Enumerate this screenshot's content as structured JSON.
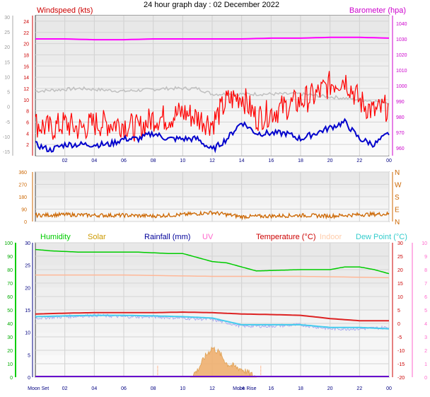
{
  "title": "24 hour graph day : 02 December 2022",
  "chart_data": [
    {
      "type": "line",
      "panel": "wind-baro",
      "left_label": "Windspeed (kts)",
      "right_label": "Barometer (hpa)",
      "x_ticks": [
        "02",
        "04",
        "06",
        "08",
        "10",
        "12",
        "14",
        "16",
        "18",
        "20",
        "22",
        "00"
      ],
      "y_left_ticks": [
        "24",
        "22",
        "20",
        "18",
        "16",
        "14",
        "12",
        "10",
        "8",
        "6",
        "4",
        "2"
      ],
      "y_far_left_ticks": [
        "30",
        "25",
        "20",
        "15",
        "10",
        "5",
        "0",
        "-5",
        "-10",
        "-15"
      ],
      "y_right_ticks": [
        "1040",
        "1030",
        "1020",
        "1010",
        "1000",
        "990",
        "980",
        "970",
        "960"
      ],
      "ylim_left": [
        0,
        25
      ],
      "ylim_right": [
        955,
        1045
      ],
      "series": [
        {
          "role": "barometer",
          "color": "#ff00ff",
          "x": [
            0,
            2,
            4,
            6,
            8,
            10,
            12,
            14,
            16,
            18,
            20,
            22,
            24
          ],
          "values": [
            1030,
            1030,
            1029.5,
            1029.5,
            1030,
            1030,
            1030,
            1030,
            1030.5,
            1030.5,
            1031,
            1031,
            1030.5
          ]
        },
        {
          "role": "gust",
          "color": "#ff0000",
          "x": [
            0,
            1,
            2,
            3,
            4,
            5,
            6,
            7,
            8,
            9,
            10,
            11,
            12,
            13,
            14,
            15,
            16,
            17,
            18,
            19,
            20,
            21,
            22,
            23,
            24
          ],
          "values": [
            5,
            4,
            5,
            4,
            5,
            5,
            5,
            4,
            6,
            6,
            7,
            6,
            5,
            9,
            10,
            6,
            7,
            8,
            9,
            10,
            12,
            13,
            9,
            7,
            8
          ]
        },
        {
          "role": "average",
          "color": "#0000cc",
          "x": [
            0,
            1,
            2,
            3,
            4,
            5,
            6,
            7,
            8,
            9,
            10,
            11,
            12,
            13,
            14,
            15,
            16,
            17,
            18,
            19,
            20,
            21,
            22,
            23,
            24
          ],
          "values": [
            2,
            1,
            2,
            2,
            2,
            2,
            3,
            3,
            4,
            3,
            3,
            3,
            1,
            3,
            6,
            4,
            4,
            4,
            3,
            4,
            5,
            6,
            3,
            2,
            4
          ]
        },
        {
          "role": "gray",
          "color": "#c0c0c0",
          "x": [
            0,
            3,
            6,
            9,
            11,
            12,
            14,
            16,
            18,
            20,
            22,
            24
          ],
          "values": [
            11.5,
            12,
            11.5,
            12,
            12,
            11,
            11,
            11,
            11,
            10.5,
            10,
            9.5
          ]
        }
      ]
    },
    {
      "type": "line",
      "panel": "direction",
      "y_left_ticks": [
        "360",
        "270",
        "180",
        "90",
        "0"
      ],
      "y_right_ticks": [
        "N",
        "W",
        "S",
        "E",
        "N"
      ],
      "ylim": [
        0,
        360
      ],
      "series": [
        {
          "role": "direction",
          "color": "#cc6600",
          "x": [
            0,
            2,
            4,
            6,
            8,
            10,
            12,
            14,
            16,
            18,
            20,
            22,
            24
          ],
          "values": [
            45,
            50,
            45,
            45,
            40,
            50,
            65,
            35,
            40,
            45,
            40,
            50,
            55
          ]
        }
      ]
    },
    {
      "type": "line",
      "panel": "temp-hum",
      "legend": [
        {
          "label": "Humidity",
          "color": "#00cc00"
        },
        {
          "label": "Solar",
          "color": "#cc9900"
        },
        {
          "label": "Rainfall (mm)",
          "color": "#000099"
        },
        {
          "label": "UV",
          "color": "#ff66cc"
        },
        {
          "label": "Temperature (°C)",
          "color": "#cc0000"
        },
        {
          "label": "Indoor",
          "color": "#ffccaa"
        },
        {
          "label": "Dew Point (°C)",
          "color": "#33cccc"
        }
      ],
      "x_ticks": [
        "02",
        "04",
        "06",
        "08",
        "10",
        "12",
        "14",
        "16",
        "18",
        "20",
        "22",
        "00"
      ],
      "events": [
        {
          "label": "Moon Set",
          "x": 0.2
        },
        {
          "label": "Moon Rise",
          "x": 14.2
        }
      ],
      "y_far_left_ticks": [
        "100",
        "90",
        "80",
        "70",
        "60",
        "50",
        "40",
        "30",
        "20",
        "10",
        "0"
      ],
      "y_left_ticks": [
        "30",
        "25",
        "20",
        "15",
        "10",
        "5",
        "0"
      ],
      "y_right_ticks": [
        "30",
        "25",
        "20",
        "15",
        "10",
        "5",
        "0",
        "-5",
        "-10",
        "-15",
        "-20"
      ],
      "y_far_right_ticks": [
        "10",
        "9",
        "8",
        "7",
        "6",
        "5",
        "4",
        "3",
        "2",
        "1",
        "0"
      ],
      "ylim_temp": [
        -20,
        30
      ],
      "ylim_hum": [
        0,
        100
      ],
      "series": [
        {
          "role": "humidity",
          "color": "#00cc00",
          "x": [
            0,
            1,
            3,
            7,
            9,
            10,
            12,
            13,
            15,
            18,
            19,
            20,
            21,
            22,
            23,
            24
          ],
          "values": [
            95,
            94,
            93,
            93,
            92,
            92,
            86,
            85,
            79,
            80,
            80,
            80,
            82,
            82,
            80,
            77
          ]
        },
        {
          "role": "indoor",
          "color": "#ffb898",
          "x": [
            0,
            6,
            12,
            18,
            24
          ],
          "values": [
            18,
            18,
            17.5,
            17.5,
            17
          ]
        },
        {
          "role": "temperature",
          "color": "#dd2222",
          "x": [
            0,
            2,
            4,
            6,
            8,
            10,
            12,
            14,
            16,
            18,
            20,
            22,
            24
          ],
          "values": [
            3.5,
            3.8,
            4,
            4,
            4,
            4.2,
            4,
            3.5,
            3.3,
            3,
            1.8,
            1,
            1
          ]
        },
        {
          "role": "dewpoint",
          "color": "#44ccee",
          "x": [
            0,
            2,
            4,
            6,
            8,
            10,
            12,
            14,
            16,
            18,
            20,
            22,
            24
          ],
          "values": [
            2.5,
            2.8,
            3,
            3,
            2.8,
            2.5,
            2,
            -0.5,
            -0.5,
            -0.5,
            -1.5,
            -1.5,
            -2
          ]
        },
        {
          "role": "dewpoint-raw",
          "color": "#aaaaee",
          "x": [
            0,
            2,
            4,
            6,
            8,
            10,
            12,
            14,
            16,
            18,
            20,
            22,
            24
          ],
          "values": [
            2,
            2.5,
            3,
            2.5,
            2.5,
            2,
            1.5,
            -1,
            -1,
            -0.5,
            -2,
            -2,
            -1.5
          ]
        },
        {
          "role": "solar",
          "color": "#dd9944",
          "x": [
            10.5,
            11,
            11.5,
            12,
            12.5,
            13,
            14,
            15
          ],
          "values": [
            0,
            0.5,
            1.5,
            2.2,
            1.8,
            1,
            0.6,
            0
          ]
        }
      ]
    }
  ]
}
